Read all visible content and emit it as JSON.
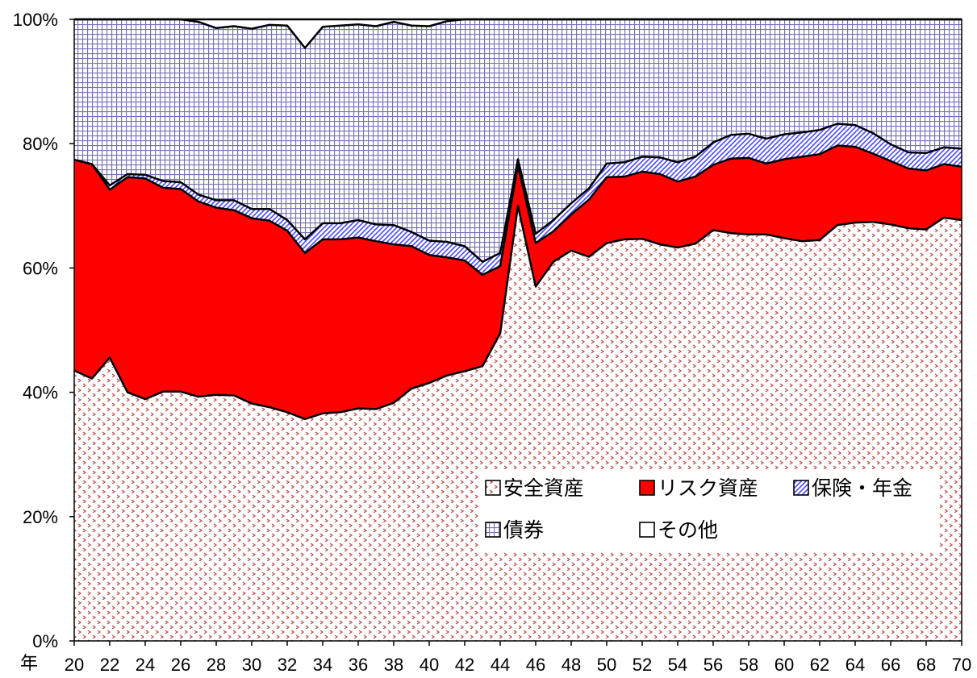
{
  "chart_data": {
    "type": "area",
    "stacked": true,
    "percent": true,
    "xlabel": "年",
    "x": [
      20,
      21,
      22,
      23,
      24,
      25,
      26,
      27,
      28,
      29,
      30,
      31,
      32,
      33,
      34,
      35,
      36,
      37,
      38,
      39,
      40,
      41,
      42,
      43,
      44,
      45,
      46,
      47,
      48,
      49,
      50,
      51,
      52,
      53,
      54,
      55,
      56,
      57,
      58,
      59,
      60,
      61,
      62,
      63,
      64,
      65,
      66,
      67,
      68,
      69,
      70
    ],
    "x_tick_labels": [
      "20",
      "22",
      "24",
      "26",
      "28",
      "30",
      "32",
      "34",
      "36",
      "38",
      "40",
      "42",
      "44",
      "46",
      "48",
      "50",
      "52",
      "54",
      "56",
      "58",
      "60",
      "62",
      "64",
      "66",
      "68",
      "70"
    ],
    "y_tick_labels": [
      "0%",
      "20%",
      "40%",
      "60%",
      "80%",
      "100%"
    ],
    "ylim": [
      0,
      100
    ],
    "legend_position": "lower-right",
    "series": [
      {
        "name": "安全資産",
        "pattern": "dots",
        "color": "#c0504d",
        "values": [
          43.5,
          42.2,
          45.6,
          40.0,
          38.9,
          40.1,
          40.1,
          39.3,
          39.6,
          39.5,
          38.2,
          37.6,
          36.8,
          35.7,
          36.6,
          36.8,
          37.4,
          37.3,
          38.3,
          40.6,
          41.5,
          42.7,
          43.4,
          44.2,
          49.5,
          70.0,
          57.0,
          61.0,
          62.8,
          61.8,
          64.0,
          64.6,
          64.7,
          63.8,
          63.3,
          63.9,
          66.1,
          65.6,
          65.4,
          65.4,
          64.8,
          64.3,
          64.5,
          66.9,
          67.3,
          67.4,
          67.0,
          66.4,
          66.2,
          68.1,
          67.7
        ]
      },
      {
        "name": "リスク資産",
        "pattern": "solid",
        "color": "#ff0000",
        "values": [
          33.9,
          34.5,
          27.0,
          34.6,
          35.5,
          32.8,
          32.6,
          31.4,
          30.1,
          29.8,
          29.8,
          30.0,
          29.2,
          26.7,
          28.0,
          27.8,
          27.5,
          27.0,
          25.5,
          22.9,
          20.6,
          19.0,
          17.8,
          14.7,
          10.8,
          6.5,
          7.0,
          4.9,
          5.8,
          9.2,
          10.6,
          10.1,
          10.8,
          11.3,
          10.6,
          10.8,
          10.5,
          12.0,
          12.3,
          11.4,
          12.7,
          13.6,
          13.8,
          12.8,
          12.2,
          11.0,
          10.2,
          9.6,
          9.5,
          8.6,
          8.6
        ]
      },
      {
        "name": "保険・年金",
        "pattern": "diagonal",
        "color": "#4a4aff",
        "values": [
          0.0,
          0.0,
          0.7,
          0.5,
          0.6,
          1.1,
          1.1,
          1.1,
          1.2,
          1.6,
          1.5,
          1.9,
          1.7,
          2.2,
          2.6,
          2.6,
          2.8,
          2.7,
          3.1,
          2.3,
          2.3,
          2.5,
          2.3,
          2.1,
          2.1,
          1.0,
          1.5,
          1.8,
          1.8,
          1.8,
          2.2,
          2.3,
          2.4,
          2.7,
          3.1,
          3.2,
          3.6,
          3.8,
          3.9,
          4.0,
          4.0,
          3.9,
          3.9,
          3.5,
          3.5,
          3.3,
          2.7,
          2.6,
          2.8,
          2.7,
          2.9
        ]
      },
      {
        "name": "債券",
        "pattern": "grid",
        "color": "#9999cc",
        "values": [
          22.6,
          23.3,
          26.7,
          24.9,
          25.0,
          26.0,
          26.2,
          27.8,
          27.7,
          28.0,
          29.0,
          29.6,
          31.3,
          30.8,
          31.6,
          31.8,
          31.5,
          31.9,
          32.7,
          33.2,
          34.5,
          35.5,
          36.5,
          39.0,
          37.6,
          22.5,
          34.5,
          32.3,
          29.6,
          27.2,
          23.2,
          23.0,
          22.1,
          22.2,
          23.0,
          22.1,
          19.8,
          18.6,
          18.4,
          19.2,
          18.5,
          18.2,
          17.8,
          16.8,
          17.0,
          18.3,
          20.1,
          21.4,
          21.5,
          20.6,
          20.8
        ]
      },
      {
        "name": "その他",
        "pattern": "none",
        "color": "#ffffff",
        "values": [
          0.0,
          0.0,
          0.0,
          0.0,
          0.0,
          0.0,
          0.0,
          0.4,
          1.4,
          1.1,
          1.5,
          0.9,
          1.0,
          4.6,
          1.2,
          1.0,
          0.8,
          1.1,
          0.4,
          1.0,
          1.1,
          0.3,
          0.0,
          0.0,
          0.0,
          0.0,
          0.0,
          0.0,
          0.0,
          0.0,
          0.0,
          0.0,
          0.0,
          0.0,
          0.0,
          0.0,
          0.0,
          0.0,
          0.0,
          0.0,
          0.0,
          0.0,
          0.0,
          0.0,
          0.0,
          0.0,
          0.0,
          0.0,
          0.0,
          0.0,
          0.0
        ]
      }
    ]
  }
}
